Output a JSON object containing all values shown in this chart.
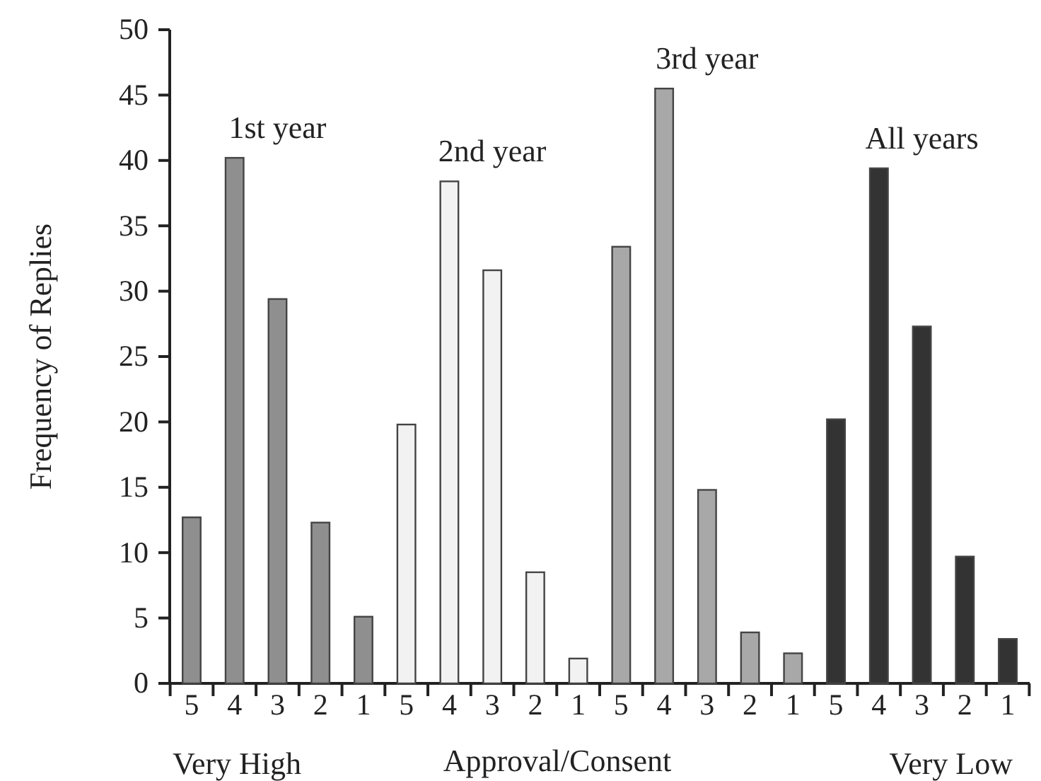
{
  "chart_data": {
    "type": "bar",
    "xlabel": "Approval/Consent",
    "ylabel": "Frequency of Replies",
    "categories": [
      "5",
      "4",
      "3",
      "2",
      "1",
      "5",
      "4",
      "3",
      "2",
      "1",
      "5",
      "4",
      "3",
      "2",
      "1",
      "5",
      "4",
      "3",
      "2",
      "1"
    ],
    "series": [
      {
        "name": "1st year",
        "color": "#8f8f8f",
        "values": [
          12.7,
          40.2,
          29.4,
          12.3,
          5.1,
          null,
          null,
          null,
          null,
          null,
          null,
          null,
          null,
          null,
          null,
          null,
          null,
          null,
          null,
          null
        ]
      },
      {
        "name": "2nd year",
        "color": "#f2f2f2",
        "values": [
          null,
          null,
          null,
          null,
          null,
          19.8,
          38.4,
          31.6,
          8.5,
          1.9,
          null,
          null,
          null,
          null,
          null,
          null,
          null,
          null,
          null,
          null
        ]
      },
      {
        "name": "3rd year",
        "color": "#a8a8a8",
        "values": [
          null,
          null,
          null,
          null,
          null,
          null,
          null,
          null,
          null,
          null,
          33.4,
          45.5,
          14.8,
          3.9,
          2.3,
          null,
          null,
          null,
          null,
          null
        ]
      },
      {
        "name": "All years",
        "color": "#333333",
        "values": [
          null,
          null,
          null,
          null,
          null,
          null,
          null,
          null,
          null,
          null,
          null,
          null,
          null,
          null,
          null,
          20.2,
          39.4,
          27.3,
          9.7,
          3.4
        ]
      }
    ],
    "ylim": [
      0,
      50
    ],
    "yticks": [
      0,
      5,
      10,
      15,
      20,
      25,
      30,
      35,
      40,
      45,
      50
    ],
    "annotations": [
      "Very High",
      "Very Low"
    ],
    "grid": false
  }
}
